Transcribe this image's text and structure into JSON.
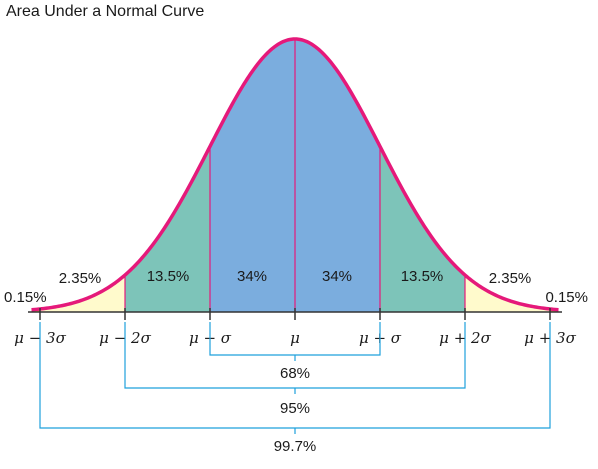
{
  "title": "Area Under a Normal Curve",
  "colors": {
    "curve": "#e5197a",
    "center": "#7badde",
    "inner": "#7dc4b9",
    "outer": "#fffacc",
    "tail": "#f3b34a",
    "bracket": "#1ea1dc",
    "axis": "#333333"
  },
  "chart_data": {
    "type": "area",
    "x_ticks": [
      "μ − 3σ",
      "μ − 2σ",
      "μ − σ",
      "μ",
      "μ + σ",
      "μ + 2σ",
      "μ + 3σ"
    ],
    "regions": [
      {
        "label": "0.15%",
        "from": -4,
        "to": -3
      },
      {
        "label": "2.35%",
        "from": -3,
        "to": -2
      },
      {
        "label": "13.5%",
        "from": -2,
        "to": -1
      },
      {
        "label": "34%",
        "from": -1,
        "to": 0
      },
      {
        "label": "34%",
        "from": 0,
        "to": 1
      },
      {
        "label": "13.5%",
        "from": 1,
        "to": 2
      },
      {
        "label": "2.35%",
        "from": 2,
        "to": 3
      },
      {
        "label": "0.15%",
        "from": 3,
        "to": 4
      }
    ],
    "brackets": [
      {
        "label": "68%",
        "from": -1,
        "to": 1
      },
      {
        "label": "95%",
        "from": -2,
        "to": 2
      },
      {
        "label": "99.7%",
        "from": -3,
        "to": 3
      }
    ]
  }
}
